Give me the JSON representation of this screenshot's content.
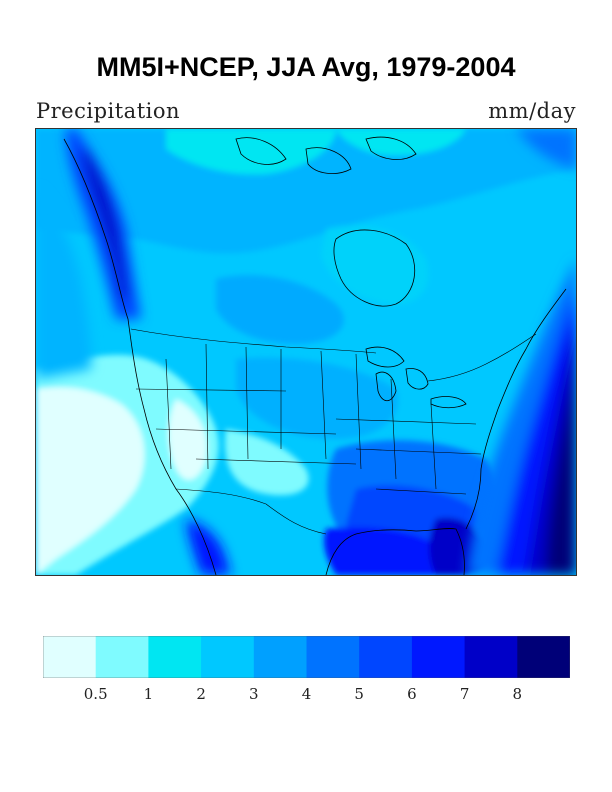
{
  "title": "MM5I+NCEP, JJA Avg, 1979-2004",
  "variable_label": "Precipitation",
  "units_label": "mm/day",
  "legend": {
    "bins": [
      {
        "color": "#e0ffff"
      },
      {
        "color": "#7ffbff"
      },
      {
        "color": "#00e6f2"
      },
      {
        "color": "#00c8ff"
      },
      {
        "color": "#00a0ff"
      },
      {
        "color": "#0073ff"
      },
      {
        "color": "#0046ff"
      },
      {
        "color": "#0018ff"
      },
      {
        "color": "#0000c8"
      },
      {
        "color": "#000078"
      }
    ],
    "tick_labels": [
      "0.5",
      "1",
      "2",
      "3",
      "4",
      "5",
      "6",
      "7",
      "8"
    ]
  }
}
